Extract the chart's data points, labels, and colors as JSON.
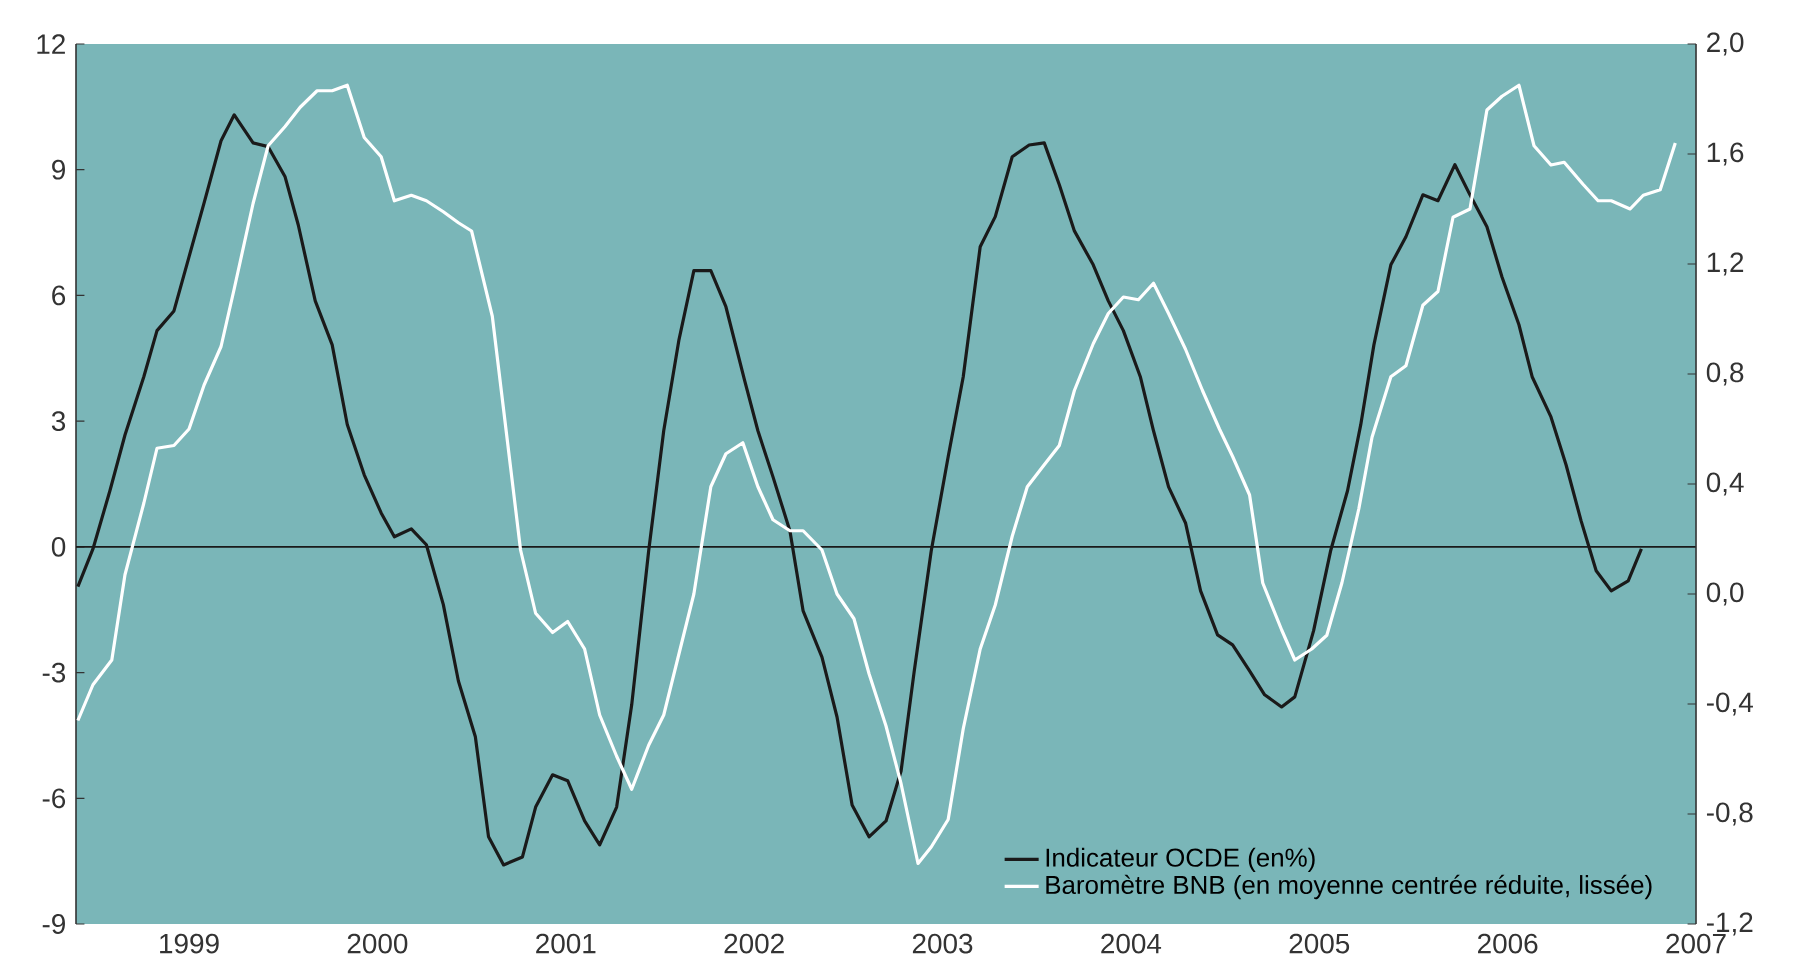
{
  "chart_data": {
    "type": "line",
    "legend": "bottom right",
    "xlim": [
      1998.4,
      2007.0
    ],
    "xticks": [
      1999,
      2000,
      2001,
      2002,
      2003,
      2004,
      2005,
      2006,
      2007
    ],
    "ylim": [
      -9,
      12
    ],
    "yticks": [
      -9,
      -6,
      -3,
      0,
      3,
      6,
      9,
      12
    ],
    "y2lim": [
      -1.2,
      2.0
    ],
    "y2ticks": [
      {
        "value": -1.2,
        "label": "-1,2"
      },
      {
        "value": -0.8,
        "label": "-0,8"
      },
      {
        "value": -0.4,
        "label": "-0,4"
      },
      {
        "value": 0.0,
        "label": "0,0"
      },
      {
        "value": 0.4,
        "label": "0,4"
      },
      {
        "value": 0.8,
        "label": "0,8"
      },
      {
        "value": 1.2,
        "label": "1,2"
      },
      {
        "value": 1.6,
        "label": "1,6"
      },
      {
        "value": 2.0,
        "label": "2,0"
      }
    ],
    "ref_lines": [
      {
        "axis": "y",
        "value": 0,
        "color": "#1a1a1a"
      }
    ],
    "series": [
      {
        "name": "Indicateur OCDE (en%)",
        "color": "#1a1a1a",
        "axis": "y",
        "x": [
          1998.41,
          1998.49,
          1998.58,
          1998.66,
          1998.76,
          1998.83,
          1998.92,
          1999.0,
          1999.08,
          1999.17,
          1999.24,
          1999.34,
          1999.42,
          1999.51,
          1999.58,
          1999.67,
          1999.76,
          1999.84,
          1999.93,
          2000.02,
          2000.09,
          2000.18,
          2000.26,
          2000.35,
          2000.43,
          2000.52,
          2000.59,
          2000.67,
          2000.77,
          2000.84,
          2000.93,
          2001.01,
          2001.1,
          2001.18,
          2001.27,
          2001.35,
          2001.44,
          2001.52,
          2001.6,
          2001.68,
          2001.77,
          2001.85,
          2001.95,
          2002.02,
          2002.1,
          2002.19,
          2002.26,
          2002.36,
          2002.44,
          2002.52,
          2002.61,
          2002.7,
          2002.78,
          2002.85,
          2002.94,
          2003.03,
          2003.11,
          2003.2,
          2003.28,
          2003.37,
          2003.46,
          2003.54,
          2003.62,
          2003.7,
          2003.8,
          2003.88,
          2003.96,
          2004.05,
          2004.12,
          2004.2,
          2004.29,
          2004.37,
          2004.46,
          2004.54,
          2004.63,
          2004.71,
          2004.8,
          2004.87,
          2004.97,
          2005.06,
          2005.15,
          2005.22,
          2005.29,
          2005.38,
          2005.46,
          2005.55,
          2005.63,
          2005.72,
          2005.8,
          2005.89,
          2005.97,
          2006.06,
          2006.13,
          2006.23,
          2006.31,
          2006.39,
          2006.47,
          2006.55,
          2006.64,
          2006.71
        ],
        "values": [
          -0.95,
          -0.05,
          1.34,
          2.67,
          4.06,
          5.16,
          5.63,
          6.92,
          8.21,
          9.69,
          10.31,
          9.64,
          9.55,
          8.83,
          7.68,
          5.87,
          4.82,
          2.92,
          1.72,
          0.81,
          0.24,
          0.43,
          0.05,
          -1.38,
          -3.2,
          -4.53,
          -6.92,
          -7.59,
          -7.4,
          -6.21,
          -5.44,
          -5.58,
          -6.54,
          -7.11,
          -6.21,
          -3.77,
          -0.1,
          2.77,
          4.92,
          6.59,
          6.59,
          5.73,
          3.96,
          2.77,
          1.67,
          0.38,
          -1.53,
          -2.63,
          -4.06,
          -6.16,
          -6.92,
          -6.54,
          -5.35,
          -2.96,
          -0.1,
          2.15,
          4.06,
          7.16,
          7.88,
          9.31,
          9.59,
          9.64,
          8.64,
          7.54,
          6.73,
          5.87,
          5.16,
          4.06,
          2.77,
          1.43,
          0.57,
          -1.05,
          -2.1,
          -2.34,
          -2.96,
          -3.53,
          -3.82,
          -3.58,
          -2.0,
          -0.1,
          1.34,
          2.91,
          4.82,
          6.73,
          7.4,
          8.4,
          8.26,
          9.12,
          8.4,
          7.64,
          6.44,
          5.3,
          4.06,
          3.1,
          1.96,
          0.62,
          -0.57,
          -1.05,
          -0.81,
          -0.05
        ]
      },
      {
        "name": "Baromètre BNB (en moyenne centrée réduite, lissée)",
        "color": "#ffffff",
        "axis": "y2",
        "x": [
          1998.41,
          1998.49,
          1998.59,
          1998.66,
          1998.76,
          1998.83,
          1998.92,
          1999.0,
          1999.08,
          1999.17,
          1999.24,
          1999.34,
          1999.42,
          1999.51,
          1999.59,
          1999.68,
          1999.76,
          1999.84,
          1999.93,
          2000.02,
          2000.09,
          2000.18,
          2000.26,
          2000.35,
          2000.43,
          2000.5,
          2000.61,
          2000.67,
          2000.76,
          2000.84,
          2000.93,
          2001.01,
          2001.1,
          2001.18,
          2001.27,
          2001.35,
          2001.44,
          2001.52,
          2001.6,
          2001.68,
          2001.77,
          2001.85,
          2001.94,
          2002.02,
          2002.1,
          2002.19,
          2002.26,
          2002.36,
          2002.44,
          2002.53,
          2002.61,
          2002.7,
          2002.78,
          2002.87,
          2002.94,
          2003.03,
          2003.11,
          2003.2,
          2003.28,
          2003.37,
          2003.45,
          2003.54,
          2003.62,
          2003.7,
          2003.8,
          2003.88,
          2003.96,
          2004.04,
          2004.12,
          2004.2,
          2004.29,
          2004.38,
          2004.47,
          2004.54,
          2004.63,
          2004.7,
          2004.8,
          2004.87,
          2004.96,
          2005.04,
          2005.12,
          2005.21,
          2005.28,
          2005.38,
          2005.46,
          2005.55,
          2005.63,
          2005.71,
          2005.8,
          2005.89,
          2005.97,
          2006.06,
          2006.14,
          2006.23,
          2006.3,
          2006.4,
          2006.48,
          2006.55,
          2006.65,
          2006.72,
          2006.81,
          2006.89
        ],
        "values": [
          -0.46,
          -0.33,
          -0.24,
          0.07,
          0.33,
          0.53,
          0.54,
          0.6,
          0.76,
          0.9,
          1.11,
          1.42,
          1.63,
          1.7,
          1.77,
          1.83,
          1.83,
          1.85,
          1.66,
          1.59,
          1.43,
          1.45,
          1.43,
          1.39,
          1.35,
          1.32,
          1.01,
          0.67,
          0.16,
          -0.07,
          -0.14,
          -0.1,
          -0.2,
          -0.44,
          -0.59,
          -0.71,
          -0.55,
          -0.44,
          -0.22,
          0.0,
          0.39,
          0.51,
          0.55,
          0.39,
          0.27,
          0.23,
          0.23,
          0.16,
          0.0,
          -0.09,
          -0.29,
          -0.48,
          -0.69,
          -0.98,
          -0.92,
          -0.82,
          -0.49,
          -0.2,
          -0.04,
          0.21,
          0.39,
          0.47,
          0.54,
          0.74,
          0.91,
          1.02,
          1.08,
          1.07,
          1.13,
          1.02,
          0.89,
          0.74,
          0.6,
          0.5,
          0.36,
          0.04,
          -0.13,
          -0.24,
          -0.2,
          -0.15,
          0.04,
          0.31,
          0.57,
          0.79,
          0.83,
          1.05,
          1.1,
          1.37,
          1.4,
          1.76,
          1.81,
          1.85,
          1.63,
          1.56,
          1.57,
          1.49,
          1.43,
          1.43,
          1.4,
          1.45,
          1.47,
          1.64
        ]
      }
    ]
  }
}
